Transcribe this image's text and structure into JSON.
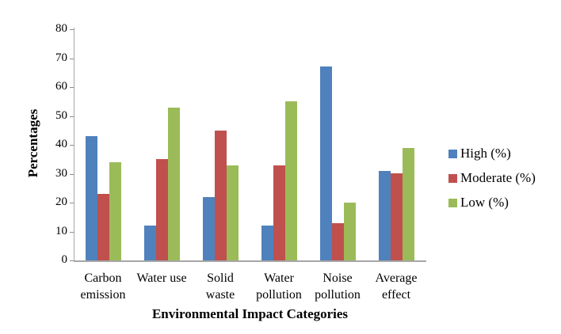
{
  "chart_data": {
    "type": "bar",
    "title": "",
    "xlabel": "Environmental Impact Categories",
    "ylabel": "Percentages",
    "ylim": [
      0,
      80
    ],
    "yticks": [
      0,
      10,
      20,
      30,
      40,
      50,
      60,
      70,
      80
    ],
    "grid": false,
    "legend_position": "right",
    "categories": [
      "Carbon emission",
      "Water use",
      "Solid waste",
      "Water pollution",
      "Noise pollution",
      "Average effect"
    ],
    "category_label_lines": [
      [
        "Carbon",
        "emission"
      ],
      [
        "Water use"
      ],
      [
        "Solid",
        "waste"
      ],
      [
        "Water",
        "pollution"
      ],
      [
        "Noise",
        "pollution"
      ],
      [
        "Average",
        "effect"
      ]
    ],
    "series": [
      {
        "name": "High (%)",
        "color": "#4F81BD",
        "values": [
          43,
          12,
          22,
          12,
          67,
          31
        ]
      },
      {
        "name": "Moderate (%)",
        "color": "#C0504D",
        "values": [
          23,
          35,
          45,
          33,
          13,
          30
        ]
      },
      {
        "name": "Low (%)",
        "color": "#9BBB59",
        "values": [
          34,
          53,
          33,
          55,
          20,
          39
        ]
      }
    ],
    "axis_color": "#A6A6A6",
    "text_color": "#000000"
  }
}
